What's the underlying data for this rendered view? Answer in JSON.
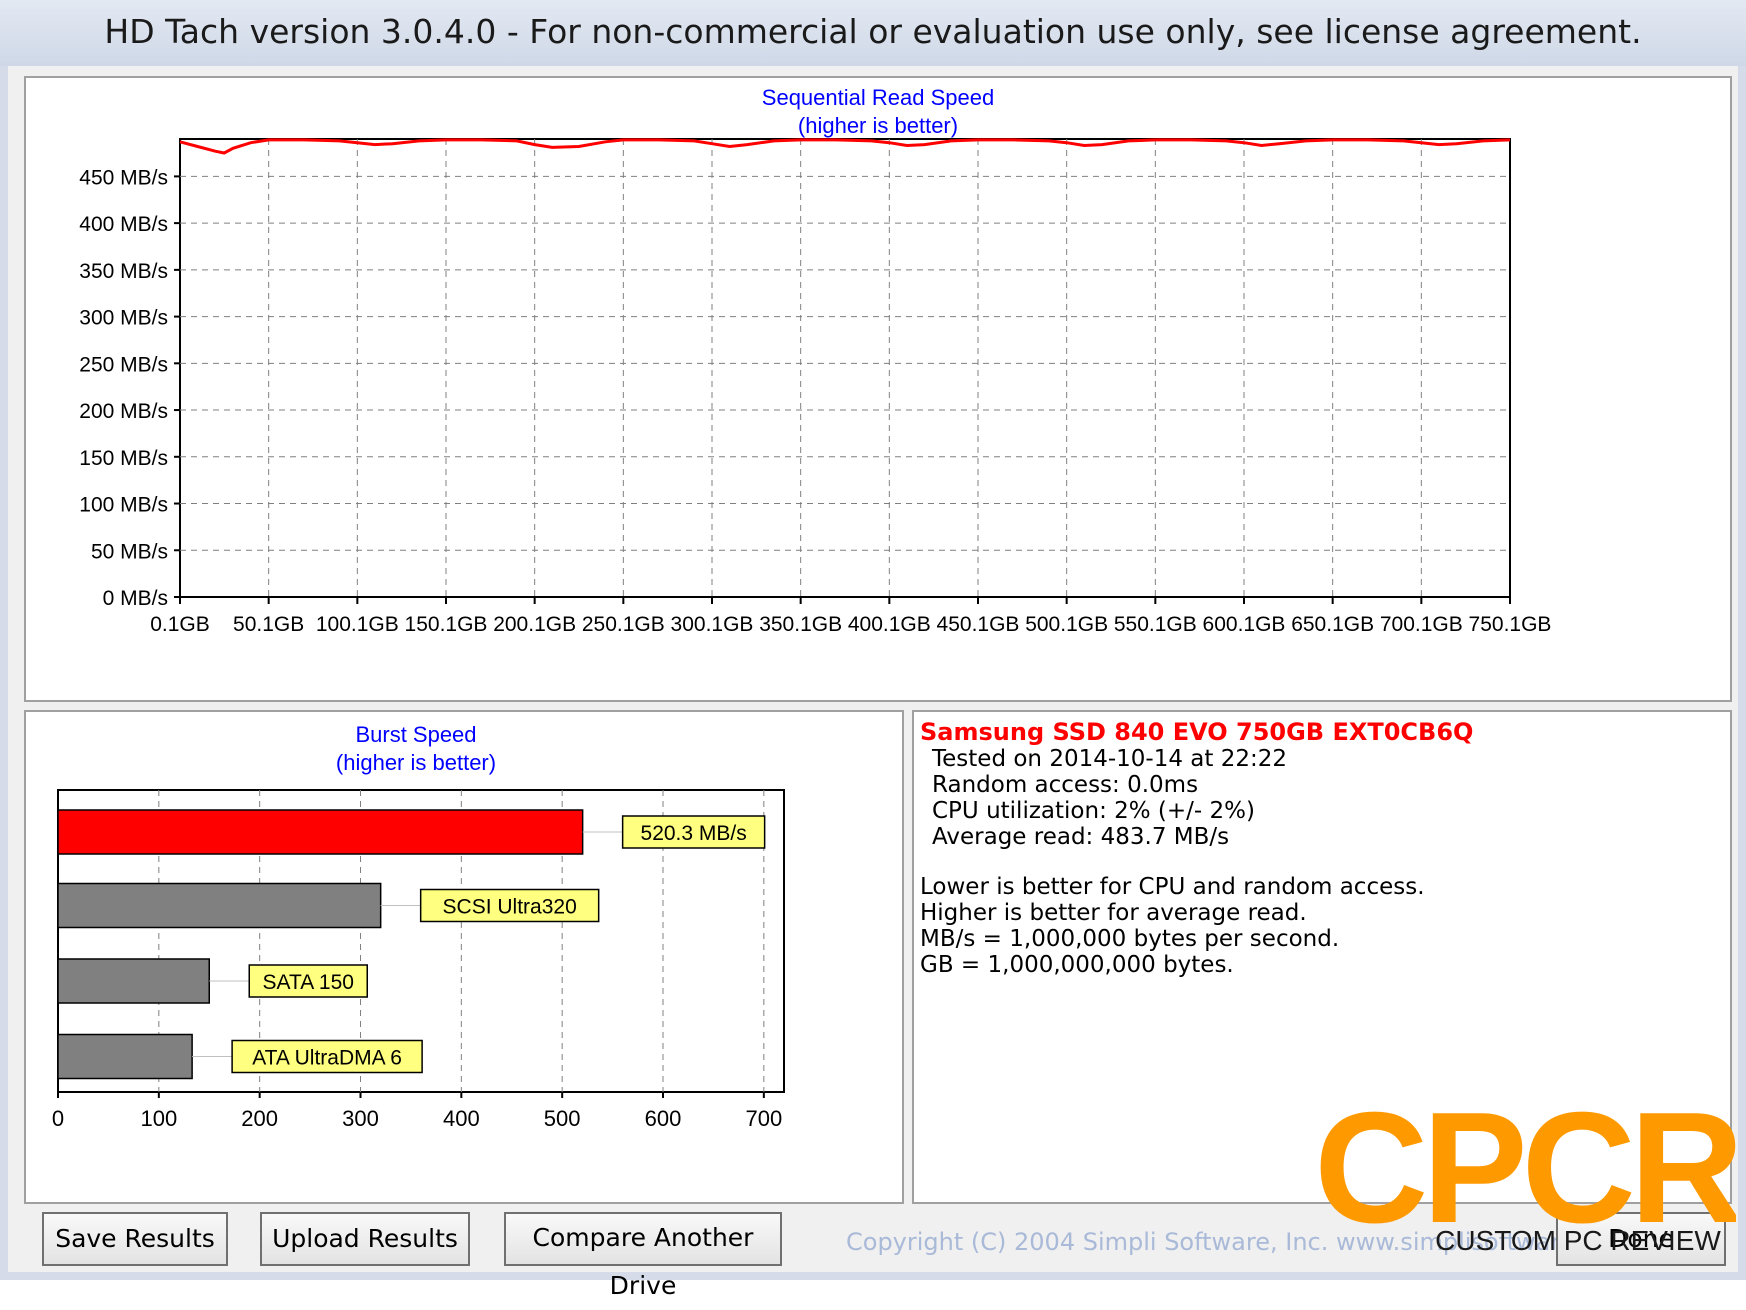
{
  "window": {
    "title": "HD Tach version 3.0.4.0  - For non-commercial or evaluation use only, see license agreement."
  },
  "sequential": {
    "title": "Sequential Read Speed",
    "subtitle": "(higher is better)",
    "line_color": "#ff0000"
  },
  "burst": {
    "title": "Burst Speed",
    "subtitle": "(higher is better)"
  },
  "chart_data": [
    {
      "type": "line",
      "title": "Sequential Read Speed",
      "subtitle": "(higher is better)",
      "x_ticks": [
        "0.1GB",
        "50.1GB",
        "100.1GB",
        "150.1GB",
        "200.1GB",
        "250.1GB",
        "300.1GB",
        "350.1GB",
        "400.1GB",
        "450.1GB",
        "500.1GB",
        "550.1GB",
        "600.1GB",
        "650.1GB",
        "700.1GB",
        "750.1GB"
      ],
      "y_ticks": [
        "0 MB/s",
        "50 MB/s",
        "100 MB/s",
        "150 MB/s",
        "200 MB/s",
        "250 MB/s",
        "300 MB/s",
        "350 MB/s",
        "400 MB/s",
        "450 MB/s"
      ],
      "xlim": [
        0.1,
        750.1
      ],
      "ylim": [
        0,
        490
      ],
      "grid": true,
      "series": [
        {
          "x": [
            0.1,
            10,
            20,
            25,
            30,
            40,
            50.1,
            70,
            90,
            100.1,
            110,
            120,
            135,
            150.1,
            170,
            190,
            200.1,
            210,
            225,
            240,
            250.1,
            270,
            290,
            300.1,
            310,
            320,
            335,
            350.1,
            370,
            390,
            400.1,
            410,
            420,
            435,
            450.1,
            470,
            490,
            500.1,
            510,
            520,
            535,
            550.1,
            570,
            590,
            600.1,
            610,
            620,
            635,
            650.1,
            670,
            690,
            700.1,
            710,
            720,
            735,
            750.1
          ],
          "y": [
            487,
            482,
            477,
            475,
            480,
            486,
            489,
            489,
            488,
            486,
            484,
            485,
            488,
            489,
            489,
            488,
            484,
            481,
            482,
            487,
            489,
            489,
            488,
            485,
            482,
            484,
            488,
            489,
            489,
            488,
            486,
            483,
            484,
            488,
            489,
            489,
            488,
            486,
            483,
            484,
            488,
            489,
            489,
            488,
            486,
            483,
            485,
            488,
            489,
            489,
            488,
            486,
            484,
            485,
            488,
            489
          ]
        }
      ]
    },
    {
      "type": "bar",
      "title": "Burst Speed",
      "subtitle": "(higher is better)",
      "orientation": "horizontal",
      "x_ticks": [
        "0",
        "100",
        "200",
        "300",
        "400",
        "500",
        "600",
        "700"
      ],
      "xlim": [
        0,
        720
      ],
      "grid": true,
      "bars": [
        {
          "label": "520.3 MB/s",
          "value": 520.3,
          "color": "#ff0000"
        },
        {
          "label": "SCSI Ultra320",
          "value": 320,
          "color": "#808080"
        },
        {
          "label": "SATA 150",
          "value": 150,
          "color": "#808080"
        },
        {
          "label": "ATA UltraDMA 6",
          "value": 133,
          "color": "#808080"
        }
      ],
      "label_color": "#ffff80"
    }
  ],
  "info": {
    "drive": "Samsung SSD 840 EVO 750GB EXT0CB6Q",
    "tested": "Tested on 2014-10-14 at 22:22",
    "random_access": "Random access: 0.0ms",
    "cpu": "CPU utilization: 2% (+/- 2%)",
    "average": "Average read: 483.7 MB/s",
    "note1": "Lower is better for CPU and random access.",
    "note2": "Higher is better for average read.",
    "note3": "MB/s = 1,000,000 bytes per second.",
    "note4": "GB = 1,000,000,000 bytes."
  },
  "buttons": {
    "save": "Save Results",
    "upload": "Upload Results",
    "compare": "Compare Another Drive",
    "done": "Done"
  },
  "copyright": "Copyright (C) 2004 Simpli Software, Inc. www.simplisoftware.com",
  "watermark": {
    "logo": "CPCR",
    "tagline": "CUSTOM PC REVIEW",
    "color": "#ff9900"
  }
}
